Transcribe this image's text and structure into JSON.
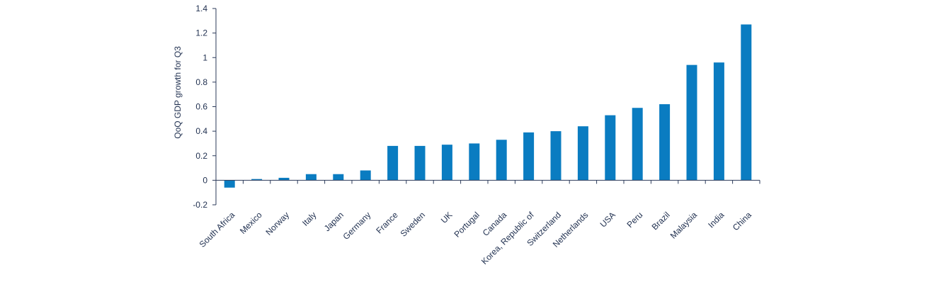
{
  "chart_data": {
    "type": "bar",
    "title": "",
    "xlabel": "",
    "ylabel": "QoQ GDP growth for Q3",
    "ylim": [
      -0.2,
      1.4
    ],
    "yticks": [
      "1.4",
      "1.2",
      "1",
      "0.8",
      "0.6",
      "0.4",
      "0.2",
      "0",
      "-0.2"
    ],
    "categories": [
      "South Africa",
      "Mexico",
      "Norway",
      "Italy",
      "Japan",
      "Germany",
      "France",
      "Sweden",
      "UK",
      "Portugal",
      "Canada",
      "Korea, Republic of",
      "Switzerland",
      "Netherlands",
      "USA",
      "Peru",
      "Brazil",
      "Malaysia",
      "India",
      "China"
    ],
    "values": [
      -0.06,
      0.01,
      0.02,
      0.05,
      0.05,
      0.08,
      0.28,
      0.28,
      0.29,
      0.3,
      0.33,
      0.39,
      0.4,
      0.44,
      0.53,
      0.59,
      0.62,
      0.94,
      0.96,
      1.27
    ],
    "grid": false,
    "bar_color": "#0a7cc1",
    "axis_color": "#2b3a5a"
  }
}
